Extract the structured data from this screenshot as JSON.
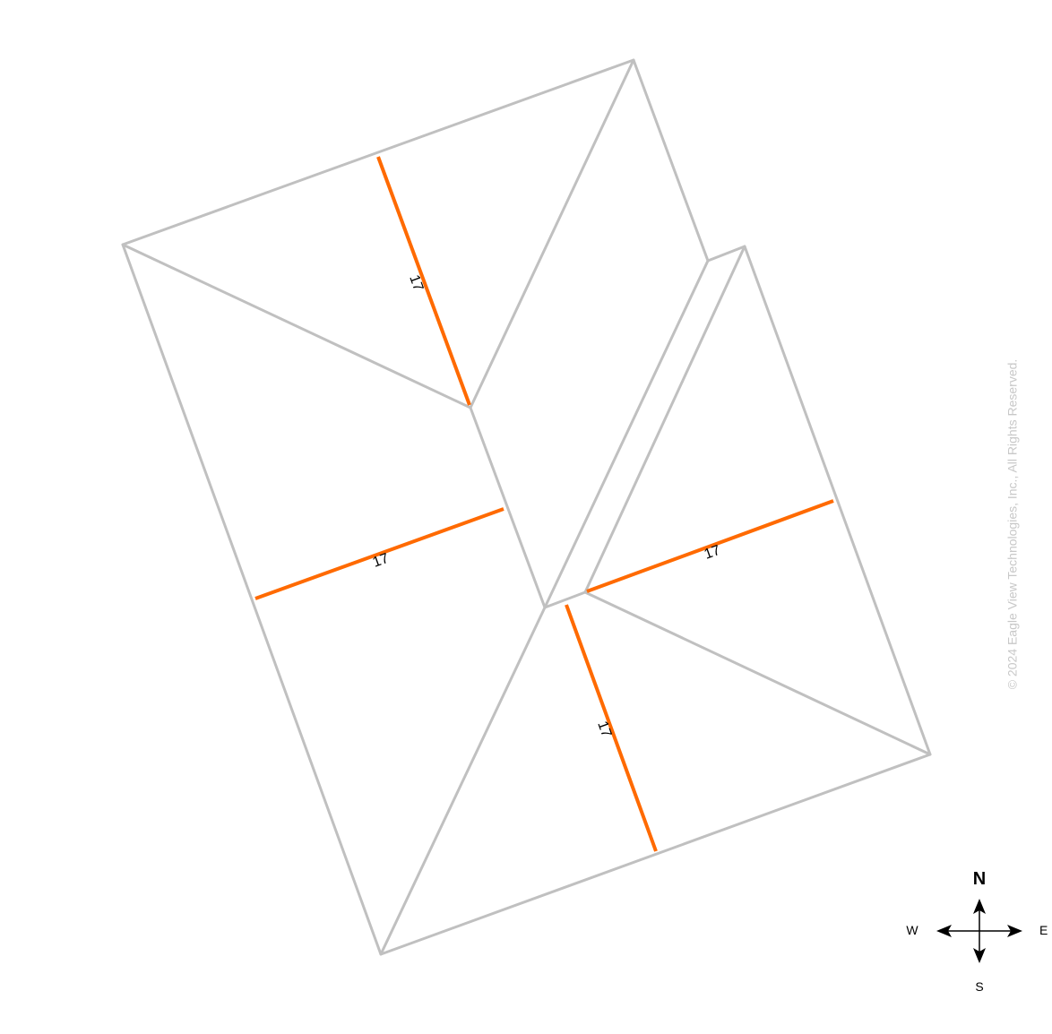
{
  "colors": {
    "edge": "#c0c0c0",
    "measure": "#ff6a00",
    "text": "#000000",
    "copyright": "#c8c8c8"
  },
  "measurements": [
    {
      "id": "top",
      "label": "17"
    },
    {
      "id": "left",
      "label": "17"
    },
    {
      "id": "right",
      "label": "17"
    },
    {
      "id": "bottom",
      "label": "17"
    }
  ],
  "compass": {
    "north": "N",
    "south": "S",
    "east": "E",
    "west": "W"
  },
  "copyright": "© 2024 Eagle View Technologies, Inc., All Rights Reserved."
}
